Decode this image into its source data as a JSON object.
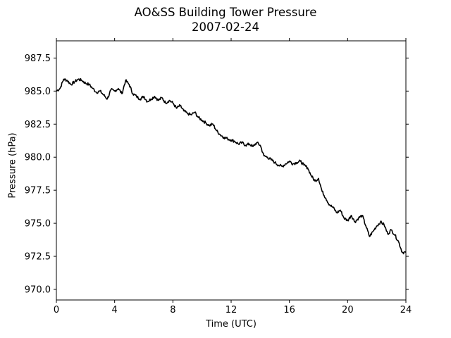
{
  "chart_data": {
    "type": "line",
    "title": "AO&SS Building Tower Pressure",
    "subtitle": "2007-02-24",
    "xlabel": "Time (UTC)",
    "ylabel": "Pressure (hPa)",
    "xlim": [
      0,
      24
    ],
    "ylim": [
      969.2,
      988.8
    ],
    "xticks": [
      0,
      4,
      8,
      12,
      16,
      20,
      24
    ],
    "xtick_labels": [
      "0",
      "4",
      "8",
      "12",
      "16",
      "20",
      "24"
    ],
    "yticks": [
      970.0,
      972.5,
      975.0,
      977.5,
      980.0,
      982.5,
      985.0,
      987.5
    ],
    "ytick_labels": [
      "970.0",
      "972.5",
      "975.0",
      "977.5",
      "980.0",
      "982.5",
      "985.0",
      "987.5"
    ],
    "grid": false,
    "series": [
      {
        "color": "#000000",
        "x": [
          0,
          0.25,
          0.5,
          0.75,
          1.0,
          1.25,
          1.5,
          1.75,
          2.0,
          2.25,
          2.5,
          2.75,
          3.0,
          3.25,
          3.5,
          3.75,
          4.0,
          4.25,
          4.5,
          4.75,
          5.0,
          5.25,
          5.5,
          5.75,
          6.0,
          6.25,
          6.5,
          6.75,
          7.0,
          7.25,
          7.5,
          7.75,
          8.0,
          8.25,
          8.5,
          8.75,
          9.0,
          9.25,
          9.5,
          9.75,
          10.0,
          10.25,
          10.5,
          10.75,
          11.0,
          11.25,
          11.5,
          11.75,
          12.0,
          12.25,
          12.5,
          12.75,
          13.0,
          13.25,
          13.5,
          13.75,
          14.0,
          14.25,
          14.5,
          14.75,
          15.0,
          15.25,
          15.5,
          15.75,
          16.0,
          16.25,
          16.5,
          16.75,
          17.0,
          17.25,
          17.5,
          17.75,
          18.0,
          18.25,
          18.5,
          18.75,
          19.0,
          19.25,
          19.5,
          19.75,
          20.0,
          20.25,
          20.5,
          20.75,
          21.0,
          21.25,
          21.5,
          21.75,
          22.0,
          22.25,
          22.5,
          22.75,
          23.0,
          23.25,
          23.5,
          23.75,
          24.0
        ],
        "y": [
          985.0,
          985.2,
          985.9,
          985.8,
          985.5,
          985.7,
          985.9,
          985.8,
          985.6,
          985.5,
          985.2,
          984.9,
          985.0,
          984.7,
          984.4,
          985.1,
          985.0,
          985.2,
          984.8,
          985.8,
          985.5,
          984.8,
          984.6,
          984.4,
          984.6,
          984.2,
          984.4,
          984.6,
          984.3,
          984.5,
          984.1,
          984.3,
          984.1,
          983.7,
          983.9,
          983.5,
          983.3,
          983.2,
          983.4,
          983.0,
          982.8,
          982.6,
          982.4,
          982.5,
          982.0,
          981.7,
          981.5,
          981.4,
          981.3,
          981.2,
          981.0,
          981.1,
          980.9,
          981.0,
          980.8,
          981.1,
          980.9,
          980.1,
          980.0,
          979.8,
          979.6,
          979.4,
          979.3,
          979.5,
          979.7,
          979.5,
          979.6,
          979.7,
          979.4,
          979.2,
          978.6,
          978.2,
          978.4,
          977.4,
          976.9,
          976.4,
          976.2,
          975.8,
          976.0,
          975.4,
          975.2,
          975.6,
          975.1,
          975.4,
          975.6,
          974.8,
          974.0,
          974.4,
          974.8,
          975.1,
          974.9,
          974.2,
          974.5,
          974.1,
          973.6,
          972.8,
          972.8
        ],
        "min_value": 972.4,
        "max_value": 986.0
      }
    ]
  }
}
